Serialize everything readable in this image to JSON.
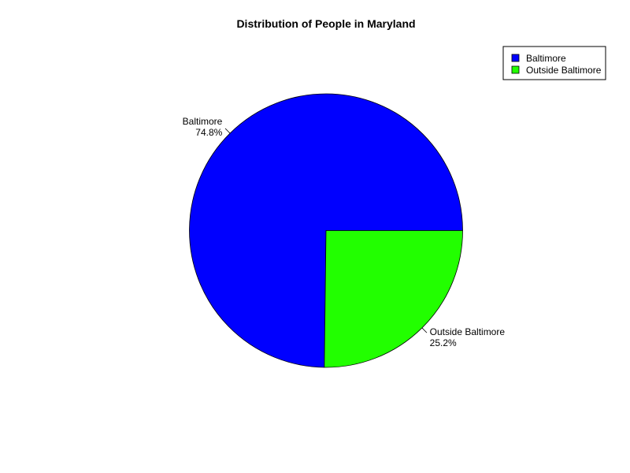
{
  "chart_data": {
    "type": "pie",
    "title": "Distribution of People in Maryland",
    "categories": [
      "Baltimore",
      "Outside Baltimore"
    ],
    "values": [
      74.8,
      25.2
    ],
    "value_labels": [
      "74.8%",
      "25.2%"
    ],
    "colors": [
      "#0000ff",
      "#22ff00"
    ],
    "start": "3 o'clock",
    "direction": "counter-clockwise",
    "legend": {
      "position": "top-right",
      "entries": [
        "Baltimore",
        "Outside Baltimore"
      ]
    }
  }
}
